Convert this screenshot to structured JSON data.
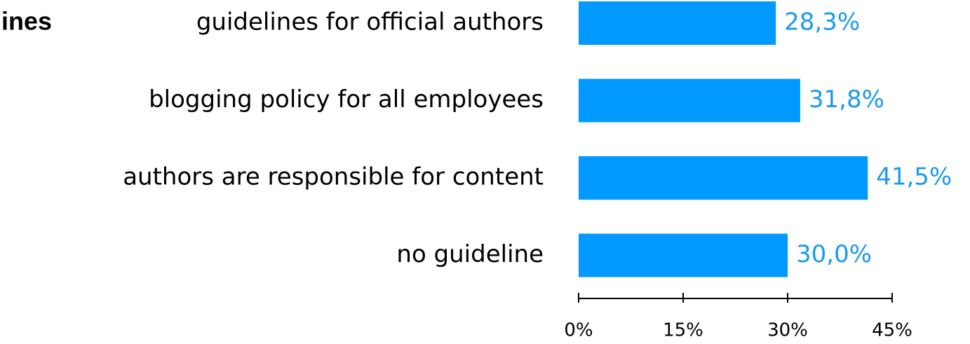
{
  "chart_data": {
    "type": "bar",
    "orientation": "horizontal",
    "title": "ines",
    "categories": [
      "guidelines for official authors",
      "blogging policy for all employees",
      "authors are responsible for content",
      "no guideline"
    ],
    "values": [
      28.3,
      31.8,
      41.5,
      30.0
    ],
    "value_labels": [
      "28,3%",
      "31,8%",
      "41,5%",
      "30,0%"
    ],
    "color": "#0099ff",
    "label_color": "#1a9af0",
    "xlim": [
      0,
      45
    ],
    "xticks": [
      {
        "value": 0,
        "label": "0%"
      },
      {
        "value": 15,
        "label": "15%"
      },
      {
        "value": 30,
        "label": "30%"
      },
      {
        "value": 45,
        "label": "45%"
      }
    ],
    "grid": false
  }
}
